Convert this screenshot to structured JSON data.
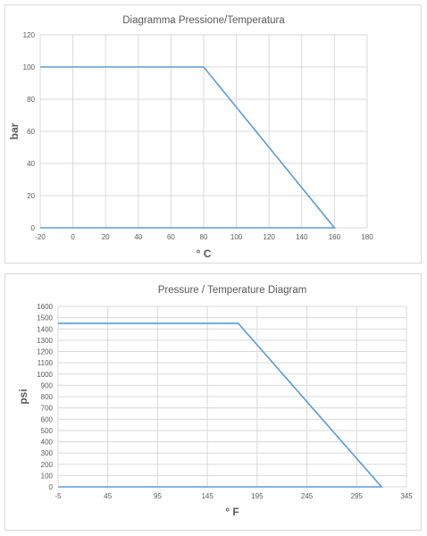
{
  "chart_data": [
    {
      "type": "line",
      "title": "Diagramma Pressione/Temperatura",
      "xlabel": "° C",
      "ylabel": "bar",
      "xlim": [
        -20,
        180
      ],
      "ylim": [
        0,
        120
      ],
      "xticks": [
        -20,
        0,
        20,
        40,
        60,
        80,
        100,
        120,
        140,
        160,
        180
      ],
      "yticks": [
        0,
        20,
        40,
        60,
        80,
        100,
        120
      ],
      "grid": true,
      "legend": "none",
      "series": [
        {
          "x": [
            -20,
            80,
            160,
            160,
            -20
          ],
          "y": [
            100,
            100,
            0,
            0,
            0
          ]
        }
      ]
    },
    {
      "type": "line",
      "title": "Pressure / Temperature Diagram",
      "xlabel": "° F",
      "ylabel": "psi",
      "xlim": [
        -5,
        345
      ],
      "ylim": [
        0,
        1600
      ],
      "xticks": [
        -5,
        45,
        95,
        145,
        195,
        245,
        295,
        345
      ],
      "yticks": [
        0,
        100,
        200,
        300,
        400,
        500,
        600,
        700,
        800,
        900,
        1000,
        1100,
        1200,
        1300,
        1400,
        1500,
        1600
      ],
      "grid": true,
      "legend": "none",
      "series": [
        {
          "x": [
            -5,
            176,
            320,
            320,
            -5
          ],
          "y": [
            1450,
            1450,
            0,
            0,
            0
          ]
        }
      ]
    }
  ],
  "colors": {
    "series": "#5b9bd5",
    "grid": "#d9d9d9",
    "text": "#595959"
  }
}
